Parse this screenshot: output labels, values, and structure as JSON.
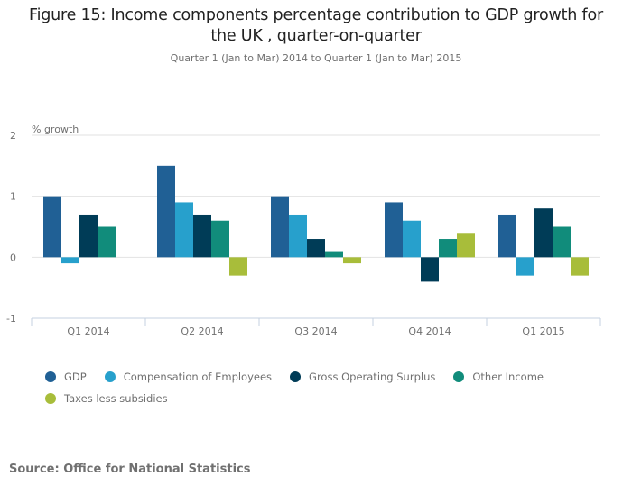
{
  "chart_data": {
    "type": "bar",
    "title": "Figure 15: Income components percentage contribution to GDP growth for the UK , quarter-on-quarter",
    "title_lines": [
      "Figure 15: Income components percentage contribution to GDP growth for",
      "the UK , quarter-on-quarter"
    ],
    "subtitle": "Quarter 1 (Jan to Mar) 2014 to Quarter 1 (Jan to Mar) 2015",
    "xlabel": "",
    "ylabel": "% growth",
    "ylim": [
      -1,
      2
    ],
    "yticks": [
      2,
      1,
      0,
      -1
    ],
    "ytick_labels": [
      "2",
      "1",
      "0",
      "-1"
    ],
    "grid": true,
    "legend_position": "bottom-left",
    "categories": [
      "Q1 2014",
      "Q2 2014",
      "Q3 2014",
      "Q4 2014",
      "Q1 2015"
    ],
    "series": [
      {
        "name": "GDP",
        "color": "#206095",
        "values": [
          1.0,
          1.5,
          1.0,
          0.9,
          0.7
        ]
      },
      {
        "name": "Compensation of Employees",
        "color": "#27a0cc",
        "values": [
          -0.1,
          0.9,
          0.7,
          0.6,
          -0.3
        ]
      },
      {
        "name": "Gross Operating Surplus",
        "color": "#003c57",
        "values": [
          0.7,
          0.7,
          0.3,
          -0.4,
          0.8
        ]
      },
      {
        "name": "Other Income",
        "color": "#118c7b",
        "values": [
          0.5,
          0.6,
          0.1,
          0.3,
          0.5
        ]
      },
      {
        "name": "Taxes less subsidies",
        "color": "#a8bd3a",
        "values": [
          0.0,
          -0.3,
          -0.1,
          0.4,
          -0.3
        ]
      }
    ]
  },
  "source": "Source: Office for National Statistics"
}
